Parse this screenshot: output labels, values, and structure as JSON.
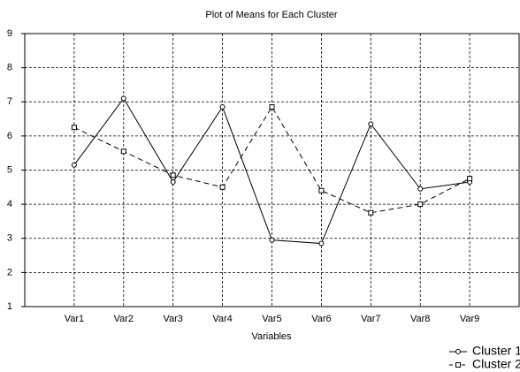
{
  "chart_data": {
    "type": "line",
    "title": "Plot of Means for Each Cluster",
    "x_label": "Variables",
    "categories": [
      "Var1",
      "Var2",
      "Var3",
      "Var4",
      "Var5",
      "Var6",
      "Var7",
      "Var8",
      "Var9"
    ],
    "series": [
      {
        "name": "Cluster 1",
        "color": "#000000",
        "marker": "circle",
        "dash": "solid",
        "values": [
          5.15,
          7.1,
          4.65,
          6.85,
          2.95,
          2.85,
          6.35,
          4.45,
          4.65
        ]
      },
      {
        "name": "Cluster 2",
        "color": "#000000",
        "marker": "square",
        "dash": "dashed",
        "values": [
          6.25,
          5.55,
          4.85,
          4.5,
          6.85,
          4.4,
          3.75,
          4.0,
          4.75
        ]
      }
    ],
    "ylim": [
      1,
      9
    ],
    "yticks": [
      1,
      2,
      3,
      4,
      5,
      6,
      7,
      8,
      9
    ],
    "grid": true,
    "legend": "bottom-right"
  }
}
